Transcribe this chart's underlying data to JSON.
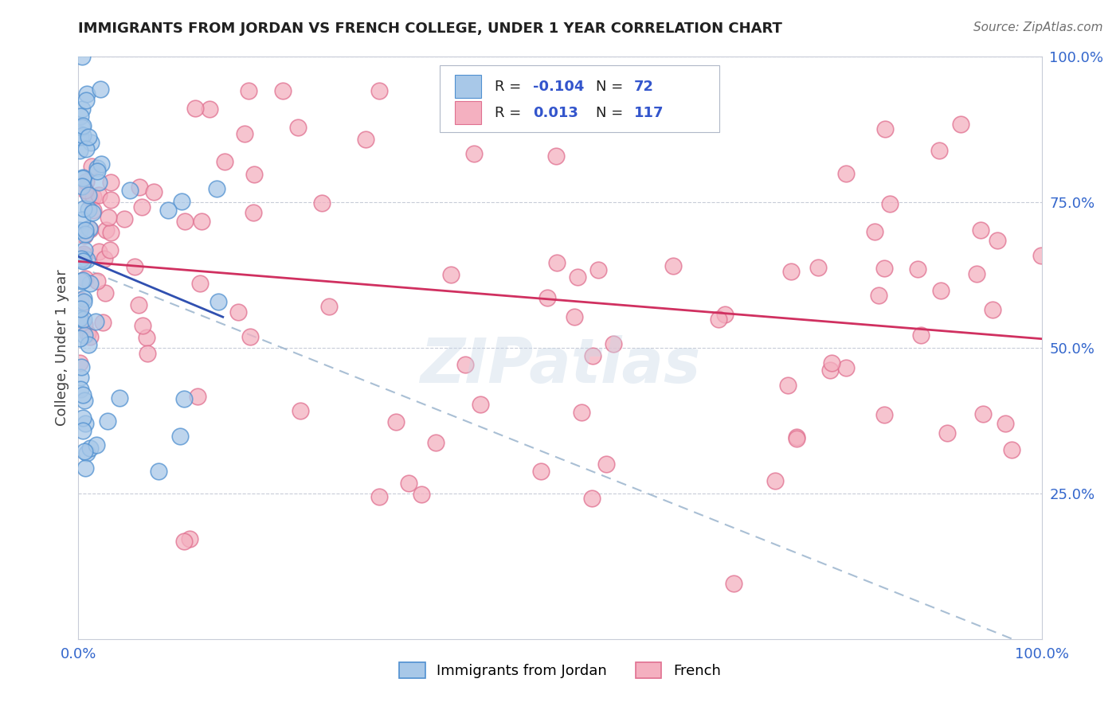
{
  "title": "IMMIGRANTS FROM JORDAN VS FRENCH COLLEGE, UNDER 1 YEAR CORRELATION CHART",
  "source": "Source: ZipAtlas.com",
  "ylabel": "College, Under 1 year",
  "legend_label1": "Immigrants from Jordan",
  "legend_label2": "French",
  "r1": "-0.104",
  "n1": "72",
  "r2": "0.013",
  "n2": "117",
  "ytick_labels": [
    "100.0%",
    "75.0%",
    "50.0%",
    "25.0%"
  ],
  "ytick_positions": [
    1.0,
    0.75,
    0.5,
    0.25
  ],
  "color_jordan_fill": "#a8c8e8",
  "color_jordan_edge": "#5090d0",
  "color_french_fill": "#f4b0c0",
  "color_french_edge": "#e07090",
  "color_jordan_line": "#3050b0",
  "color_french_line": "#d03060",
  "color_dash": "#a0b8d0",
  "watermark": "ZIPatlas",
  "title_fontsize": 13,
  "tick_fontsize": 13,
  "label_fontsize": 13
}
